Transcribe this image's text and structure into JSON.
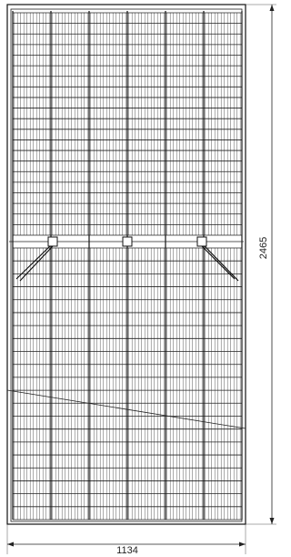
{
  "dimensions": {
    "height": "2465",
    "width": "1134"
  }
}
